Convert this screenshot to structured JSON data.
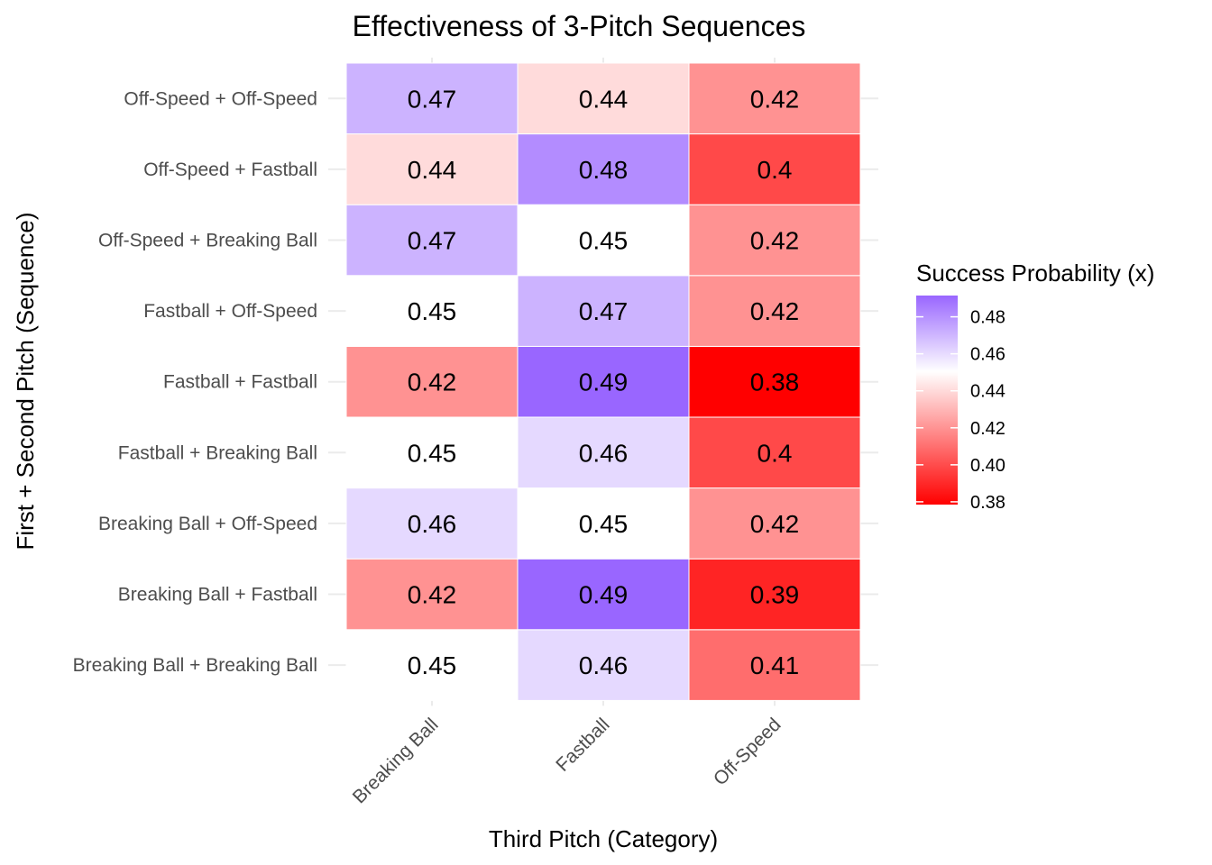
{
  "chart_data": {
    "type": "heatmap",
    "title": "Effectiveness of 3-Pitch Sequences",
    "xlabel": "Third Pitch (Category)",
    "ylabel": "First + Second Pitch (Sequence)",
    "x_categories": [
      "Breaking Ball",
      "Fastball",
      "Off-Speed"
    ],
    "y_categories": [
      "Breaking Ball + Breaking Ball",
      "Breaking Ball + Fastball",
      "Breaking Ball + Off-Speed",
      "Fastball + Breaking Ball",
      "Fastball + Fastball",
      "Fastball + Off-Speed",
      "Off-Speed + Breaking Ball",
      "Off-Speed + Fastball",
      "Off-Speed + Off-Speed"
    ],
    "values": [
      [
        0.45,
        0.46,
        0.41
      ],
      [
        0.42,
        0.49,
        0.39
      ],
      [
        0.46,
        0.45,
        0.42
      ],
      [
        0.45,
        0.46,
        0.4
      ],
      [
        0.42,
        0.49,
        0.38
      ],
      [
        0.45,
        0.47,
        0.42
      ],
      [
        0.47,
        0.45,
        0.42
      ],
      [
        0.44,
        0.48,
        0.4
      ],
      [
        0.47,
        0.44,
        0.42
      ]
    ],
    "color_scale": {
      "low": "#ff0000",
      "mid": "#ffffff",
      "high": "#9966ff",
      "midpoint": 0.45,
      "range": [
        0.38,
        0.49
      ]
    },
    "legend": {
      "title": "Success Probability (x)",
      "ticks": [
        "0.48",
        "0.46",
        "0.44",
        "0.42",
        "0.40",
        "0.38"
      ],
      "position": "right"
    },
    "grid": true
  }
}
